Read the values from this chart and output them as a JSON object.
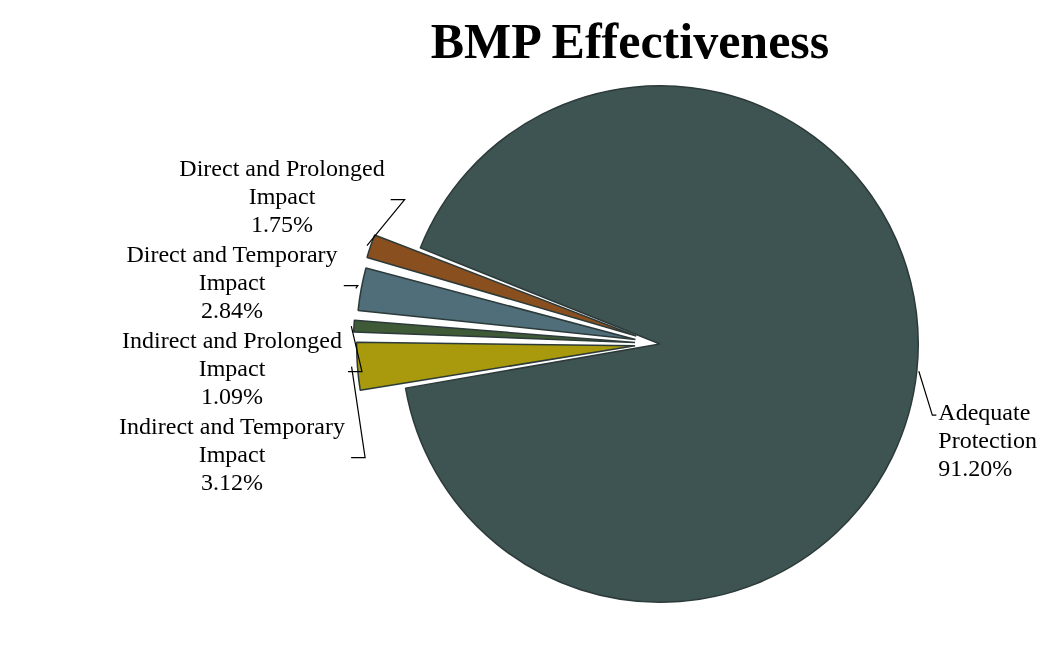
{
  "chart_data": {
    "type": "pie",
    "title": "BMP Effectiveness",
    "categories": [
      "Adequate Protection",
      "Indirect and Temporary Impact",
      "Indirect and Prolonged Impact",
      "Direct and Temporary Impact",
      "Direct and Prolonged Impact"
    ],
    "values": [
      91.2,
      3.12,
      1.09,
      2.84,
      1.75
    ],
    "value_labels": [
      "91.20%",
      "3.12%",
      "1.09%",
      "2.84%",
      "1.75%"
    ],
    "colors": [
      "#3d5453",
      "#a89a0c",
      "#3e5a36",
      "#4f6e7a",
      "#8a4f1e"
    ],
    "legend": false
  }
}
